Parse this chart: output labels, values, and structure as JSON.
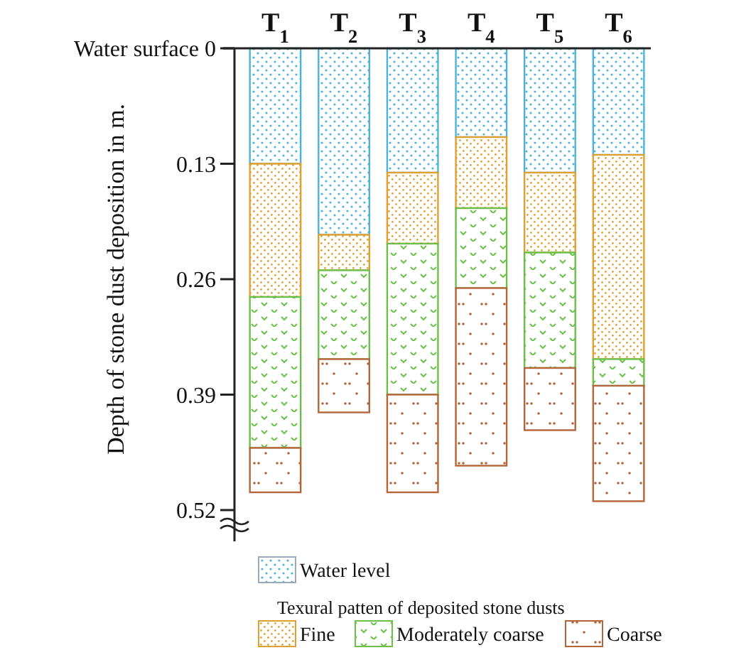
{
  "chart_data": {
    "type": "bar",
    "stacked": true,
    "ylabel": "Depth of stone dust deposition in m.",
    "categories": [
      "T$_{1}$",
      "T$_{2}$",
      "T$_{3}$",
      "T$_{4}$",
      "T$_{5}$",
      "T$_{6}$"
    ],
    "ylim": [
      0.52,
      0
    ],
    "yticks": [
      {
        "value": 0,
        "label": "Water surface 0"
      },
      0.13,
      0.26,
      0.39,
      0.52
    ],
    "legend": "bottom",
    "legend_title": "Texural patten of deposited stone dusts",
    "series": [
      {
        "name": "Water level",
        "color": "#4fb3d9",
        "values": [
          0.13,
          0.21,
          0.14,
          0.1,
          0.14,
          0.12
        ]
      },
      {
        "name": "Fine",
        "color": "#e0a030",
        "values": [
          0.15,
          0.04,
          0.08,
          0.08,
          0.09,
          0.23
        ]
      },
      {
        "name": "Moderately coarse",
        "color": "#6cc04a",
        "values": [
          0.17,
          0.1,
          0.17,
          0.09,
          0.13,
          0.03
        ]
      },
      {
        "name": "Coarse",
        "color": "#b5653a",
        "values": [
          0.05,
          0.06,
          0.11,
          0.2,
          0.07,
          0.13
        ]
      }
    ]
  }
}
